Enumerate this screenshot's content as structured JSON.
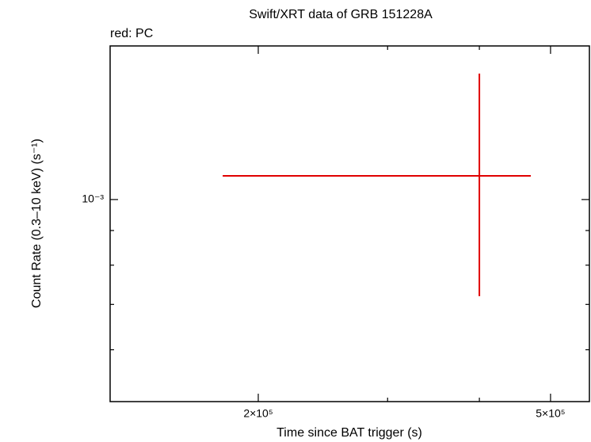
{
  "chart_data": {
    "type": "errorbar",
    "title": "Swift/XRT data of GRB 151228A",
    "annotation": "red: PC",
    "x_label": "Time since BAT trigger (s)",
    "y_label": "Count Rate (0.3–10 keV) (s⁻¹)",
    "xscale": "log",
    "yscale": "log",
    "xlim": [
      125700,
      564800
    ],
    "ylim": [
      0.000503,
      0.001686
    ],
    "xticks": [
      {
        "value": 200000,
        "label": "2×10⁵"
      },
      {
        "value": 500000,
        "label": "5×10⁵"
      }
    ],
    "xminorticks": [
      300000,
      400000
    ],
    "yticks": [
      {
        "value": 0.001,
        "label": "10⁻³"
      }
    ],
    "yminorticks": [
      0.0006,
      0.0007,
      0.0008,
      0.0009
    ],
    "series": [
      {
        "color": "#e00000",
        "x": [
          400000
        ],
        "values": [
          0.001084
        ],
        "xlow": [
          178900
        ],
        "xhigh": [
          470000
        ],
        "ylow": [
          0.00072
        ],
        "yhigh": [
          0.001535
        ]
      }
    ]
  }
}
